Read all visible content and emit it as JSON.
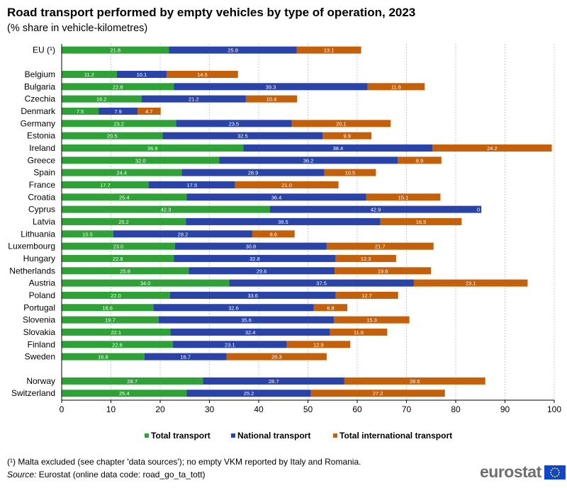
{
  "title": "Road transport performed by empty vehicles by type of operation, 2023",
  "subtitle": "(% share in vehicle-kilometres)",
  "footnote": "(¹) Malta excluded (see chapter 'data sources'); no empty VKM reported by Italy and Romania.",
  "source_label": "Source:",
  "source_text": " Eurostat (online data code: road_go_ta_tott)",
  "logo_text": "eurostat",
  "colors": {
    "total": "#2ea237",
    "national": "#2943a8",
    "international": "#c5600a",
    "grid": "#c8c8c8",
    "axis": "#000000"
  },
  "chart_data": {
    "type": "bar",
    "orientation": "horizontal",
    "stacked": true,
    "title": "Road transport performed by empty vehicles by type of operation, 2023",
    "xlim": [
      0,
      100
    ],
    "xticks": [
      0,
      10,
      20,
      30,
      40,
      50,
      60,
      70,
      80,
      90,
      100
    ],
    "legend_position": "bottom",
    "groups": [
      [
        "EU (¹)"
      ],
      [
        "Belgium",
        "Bulgaria",
        "Czechia",
        "Denmark",
        "Germany",
        "Estonia",
        "Ireland",
        "Greece",
        "Spain",
        "France",
        "Croatia",
        "Cyprus",
        "Latvia",
        "Lithuania",
        "Luxembourg",
        "Hungary",
        "Netherlands",
        "Austria",
        "Poland",
        "Portugal",
        "Slovenia",
        "Slovakia",
        "Finland",
        "Sweden"
      ],
      [
        "Norway",
        "Switzerland"
      ]
    ],
    "categories": [
      "EU (¹)",
      "Belgium",
      "Bulgaria",
      "Czechia",
      "Denmark",
      "Germany",
      "Estonia",
      "Ireland",
      "Greece",
      "Spain",
      "France",
      "Croatia",
      "Cyprus",
      "Latvia",
      "Lithuania",
      "Luxembourg",
      "Hungary",
      "Netherlands",
      "Austria",
      "Poland",
      "Portugal",
      "Slovenia",
      "Slovakia",
      "Finland",
      "Sweden",
      "Norway",
      "Switzerland"
    ],
    "series": [
      {
        "name": "Total transport",
        "color": "#2ea237",
        "values": [
          21.8,
          11.2,
          22.8,
          16.2,
          7.5,
          23.2,
          20.5,
          36.9,
          32.0,
          24.4,
          17.7,
          25.4,
          42.3,
          25.2,
          10.5,
          23.0,
          22.8,
          25.8,
          34.0,
          22.0,
          18.6,
          19.7,
          22.1,
          22.6,
          16.8,
          28.7,
          25.4
        ],
        "labels": [
          "21.8",
          "11.2",
          "22.8",
          "16.2",
          "7.5",
          "23.2",
          "20.5",
          "36.9",
          "32.0",
          "24.4",
          "17.7",
          "25.4",
          "42.3",
          "25.2",
          "10.5",
          "23.0",
          "22.8",
          "25.8",
          "34.0",
          "22.0",
          "18.6",
          "19.7",
          "22.1",
          "22.6",
          "16.8",
          "28.7",
          "25.4"
        ]
      },
      {
        "name": "National transport",
        "color": "#2943a8",
        "values": [
          25.9,
          10.1,
          39.3,
          21.2,
          7.9,
          23.5,
          32.5,
          38.4,
          36.2,
          28.9,
          17.5,
          36.4,
          42.9,
          39.5,
          28.2,
          30.8,
          32.8,
          29.6,
          37.5,
          33.6,
          32.6,
          35.6,
          32.4,
          23.1,
          16.7,
          28.7,
          25.2
        ],
        "labels": [
          "25.9",
          "10.1",
          "39.3",
          "21.2",
          "7.9",
          "23.5",
          "32.5",
          "38.4",
          "36.2",
          "28.9",
          "17.5",
          "36.4",
          "42.9",
          "39.5",
          "28.2",
          "30.8",
          "32.8",
          "29.6",
          "37.5",
          "33.6",
          "32.6",
          "35.6",
          "32.4",
          "23.1",
          "16.7",
          "28.7",
          "25.2"
        ]
      },
      {
        "name": "Total international transport",
        "color": "#c5600a",
        "values": [
          13.1,
          14.5,
          11.6,
          10.4,
          4.7,
          20.1,
          9.9,
          24.2,
          8.9,
          10.5,
          21.0,
          15.1,
          0,
          16.5,
          8.6,
          21.7,
          12.3,
          19.6,
          23.1,
          12.7,
          6.8,
          15.3,
          11.6,
          12.9,
          20.3,
          28.6,
          27.2
        ],
        "labels": [
          "13.1",
          "14.5",
          "11.6",
          "10.4",
          "4.7",
          "20.1",
          "9.9",
          "24.2",
          "8.9",
          "10.5",
          "21.0",
          "15.1",
          "0",
          "16.5",
          "8.6",
          "21.7",
          "12.3",
          "19.6",
          "23.1",
          "12.7",
          "6.8",
          "15.3",
          "11.6",
          "12.9",
          "20.3",
          "28.6",
          "27.2"
        ]
      }
    ]
  }
}
